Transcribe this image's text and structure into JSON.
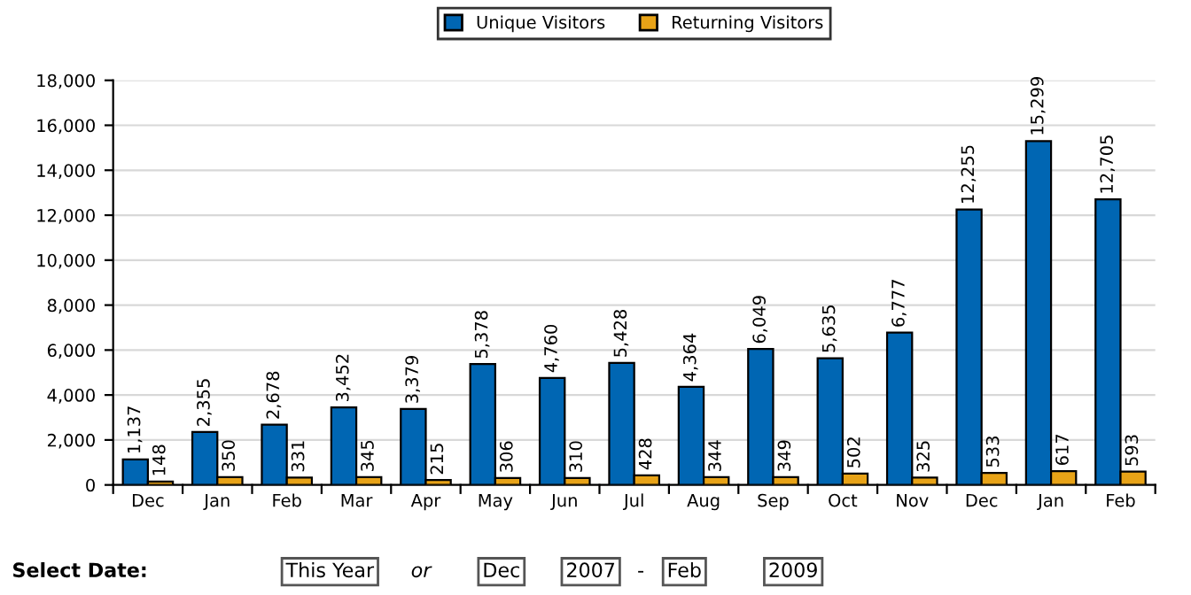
{
  "chart_data": {
    "type": "bar",
    "categories": [
      "Dec",
      "Jan",
      "Feb",
      "Mar",
      "Apr",
      "May",
      "Jun",
      "Jul",
      "Aug",
      "Sep",
      "Oct",
      "Nov",
      "Dec",
      "Jan",
      "Feb"
    ],
    "series": [
      {
        "name": "Unique Visitors",
        "color": "#0066b3",
        "values": [
          1137,
          2355,
          2678,
          3452,
          3379,
          5378,
          4760,
          5428,
          4364,
          6049,
          5635,
          6777,
          12255,
          15299,
          12705
        ],
        "value_labels": [
          "1,137",
          "2,355",
          "2,678",
          "3,452",
          "3,379",
          "5,378",
          "4,760",
          "5,428",
          "4,364",
          "6,049",
          "5,635",
          "6,777",
          "12,255",
          "15,299",
          "12,705"
        ]
      },
      {
        "name": "Returning Visitors",
        "color": "#e8a317",
        "values": [
          148,
          350,
          331,
          345,
          215,
          306,
          310,
          428,
          344,
          349,
          502,
          325,
          533,
          617,
          593
        ],
        "value_labels": [
          "148",
          "350",
          "331",
          "345",
          "215",
          "306",
          "310",
          "428",
          "344",
          "349",
          "502",
          "325",
          "533",
          "617",
          "593"
        ]
      }
    ],
    "ylim": [
      0,
      18000
    ],
    "yticks": [
      {
        "value": 0,
        "label": "0"
      },
      {
        "value": 2000,
        "label": "2,000"
      },
      {
        "value": 4000,
        "label": "4,000"
      },
      {
        "value": 6000,
        "label": "6,000"
      },
      {
        "value": 8000,
        "label": "8,000"
      },
      {
        "value": 10000,
        "label": "10,000"
      },
      {
        "value": 12000,
        "label": "12,000"
      },
      {
        "value": 14000,
        "label": "14,000"
      },
      {
        "value": 16000,
        "label": "16,000"
      },
      {
        "value": 18000,
        "label": "18,000"
      }
    ],
    "grid": "y",
    "legend": "top",
    "annotations": [
      "Select Date:",
      "This Year",
      "or",
      "Dec",
      "2007",
      "-",
      "Feb",
      "2009"
    ]
  }
}
